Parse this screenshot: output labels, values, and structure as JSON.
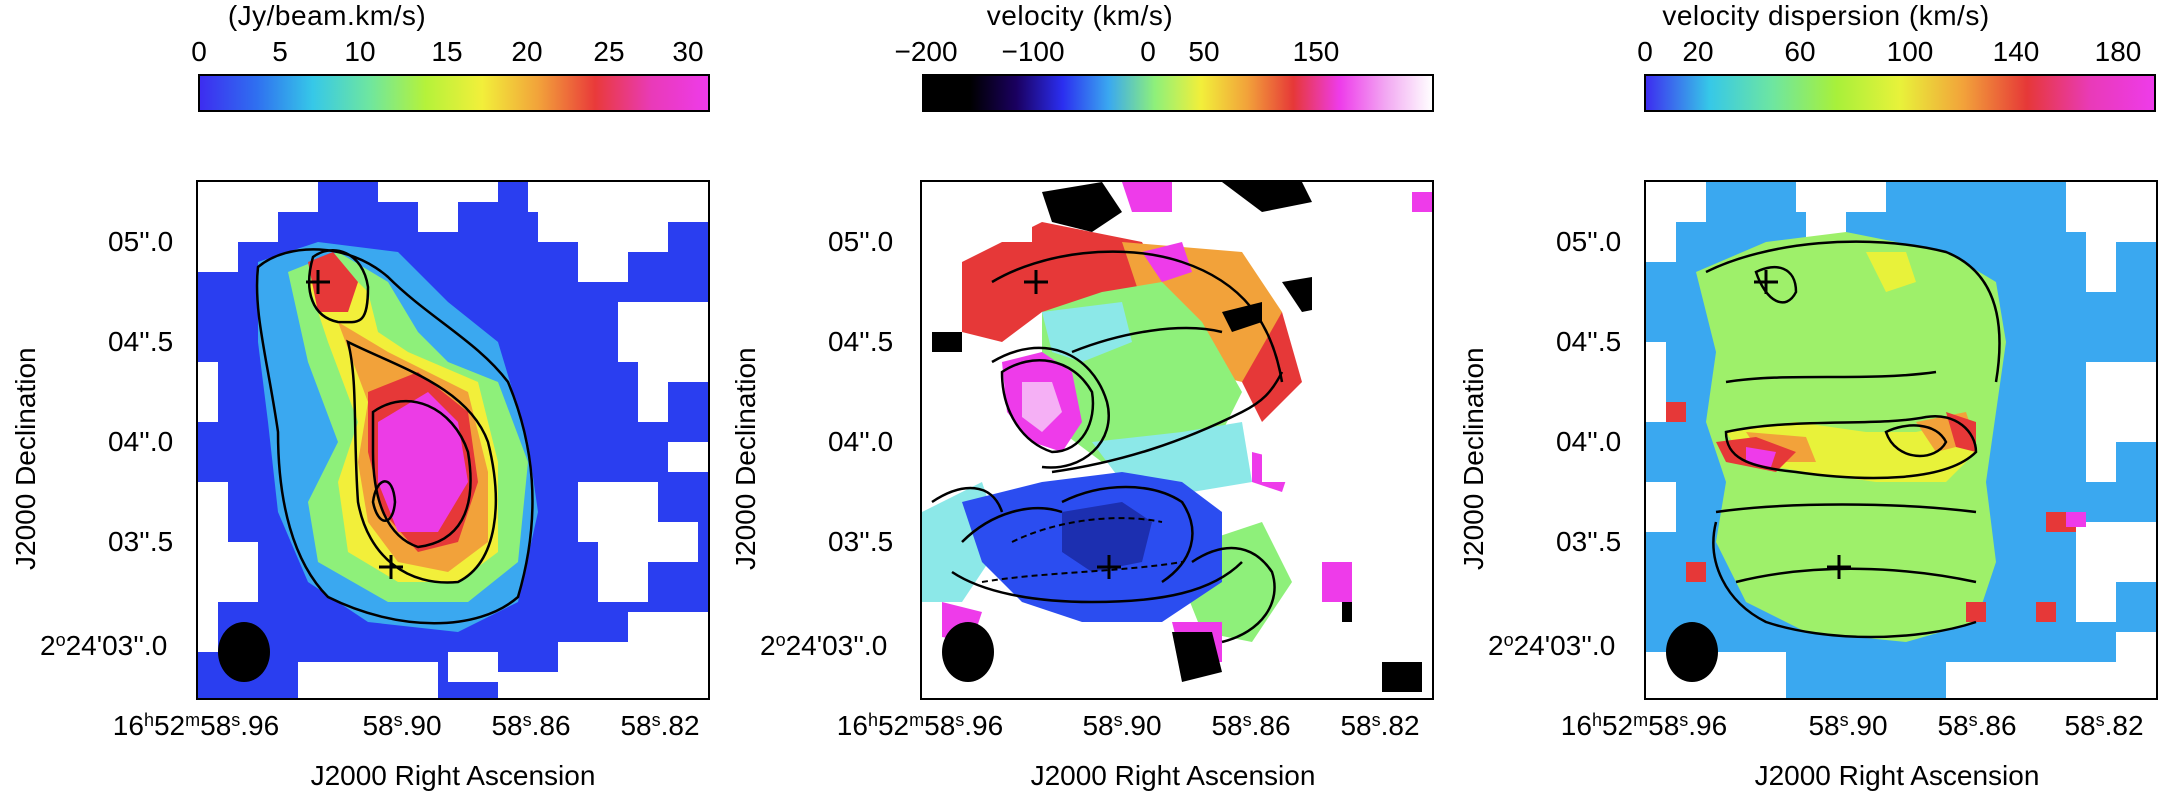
{
  "figure": {
    "panels": [
      {
        "id": "intensity",
        "colorbar_title": "(Jy/beam.km/s)",
        "colorbar_ticks": [
          "0",
          "5",
          "10",
          "15",
          "20",
          "25",
          "30"
        ],
        "colorbar_colors": [
          "#3d2df0",
          "#2f6ff0",
          "#36c8e8",
          "#6ee6a0",
          "#b5f23a",
          "#f2ef3a",
          "#f2a23a",
          "#e93a3a",
          "#e93ab8",
          "#ee3bea"
        ],
        "dominant_colors": [
          "#2a3ef0",
          "#3aa8f0",
          "#8ef07a",
          "#e63838",
          "#ec3ce6"
        ]
      },
      {
        "id": "velocity",
        "colorbar_title": "velocity (km/s)",
        "colorbar_ticks": [
          "−200",
          "−100",
          "0",
          "50",
          "150"
        ],
        "colorbar_colors": [
          "#000000",
          "#000000",
          "#1a0060",
          "#2b2ef0",
          "#3aa8f0",
          "#8ef07a",
          "#f2ef3a",
          "#f2a23a",
          "#e63838",
          "#ee3bea",
          "#f2a8f2",
          "#ffffff"
        ],
        "dominant_colors": [
          "#2b4df0",
          "#8ef07a",
          "#e63838",
          "#ee3bea",
          "#000000"
        ]
      },
      {
        "id": "dispersion",
        "colorbar_title": "velocity dispersion (km/s)",
        "colorbar_ticks": [
          "0",
          "20",
          "60",
          "100",
          "140",
          "180"
        ],
        "colorbar_colors": [
          "#3d2df0",
          "#36c8e8",
          "#6ee6a0",
          "#a8f03a",
          "#e8f23a",
          "#f2a23a",
          "#e63838",
          "#e93ab8",
          "#ee3bea"
        ],
        "dominant_colors": [
          "#9ef06a",
          "#3aa8f0",
          "#e8f23a",
          "#e63838"
        ]
      }
    ],
    "y_axis_title": "J2000 Declination",
    "y_ticks": [
      {
        "deg": "",
        "label": "05''.0"
      },
      {
        "deg": "",
        "label": "04''.5"
      },
      {
        "deg": "",
        "label": "04''.0"
      },
      {
        "deg": "",
        "label": "03''.5"
      },
      {
        "deg": "2",
        "label": "24'03''.0"
      }
    ],
    "x_axis_title": "J2000 Right Ascension",
    "x_ticks": [
      {
        "h": "16",
        "m": "52",
        "s": "58",
        "frac": ".96"
      },
      {
        "s": "58",
        "frac": ".90"
      },
      {
        "s": "58",
        "frac": ".86"
      },
      {
        "s": "58",
        "frac": ".82"
      }
    ],
    "markers": "+",
    "beam_color": "#000000"
  }
}
